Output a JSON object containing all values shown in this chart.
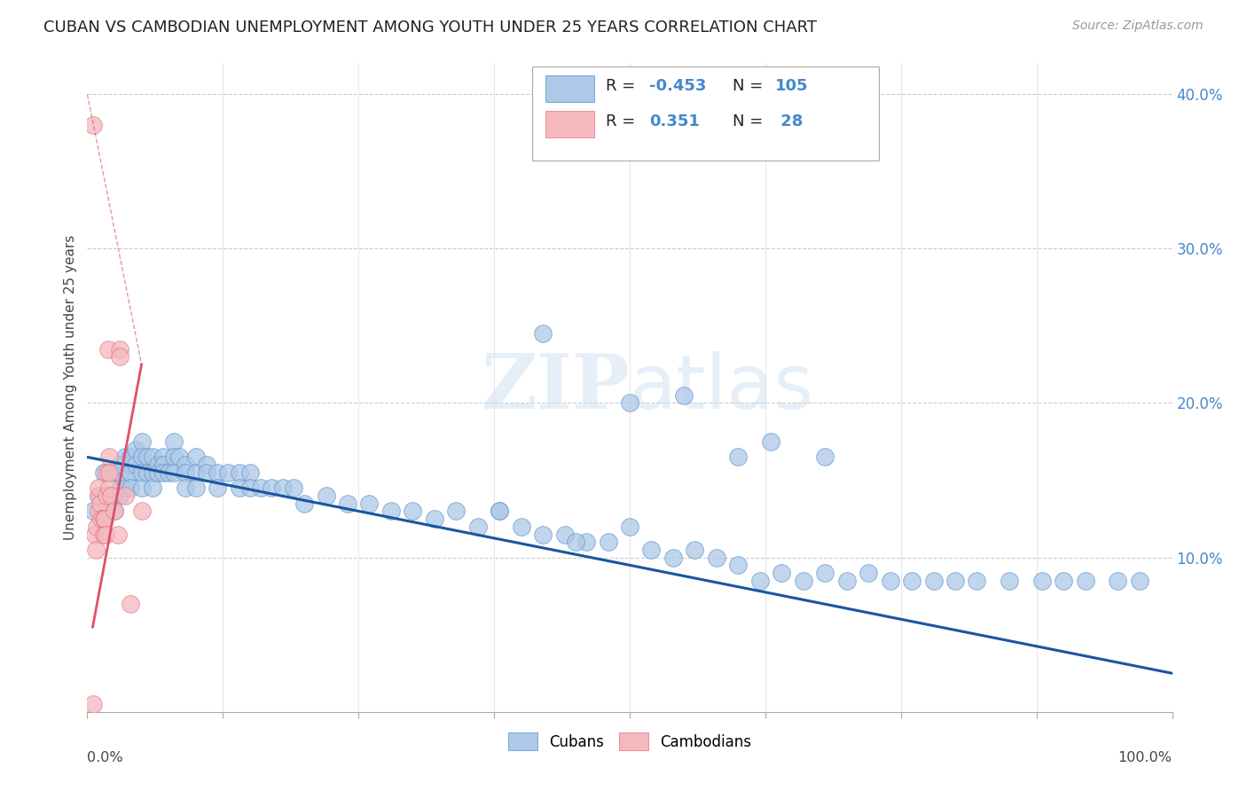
{
  "title": "CUBAN VS CAMBODIAN UNEMPLOYMENT AMONG YOUTH UNDER 25 YEARS CORRELATION CHART",
  "source": "Source: ZipAtlas.com",
  "ylabel": "Unemployment Among Youth under 25 years",
  "xlim": [
    0,
    1.0
  ],
  "ylim": [
    0,
    0.42
  ],
  "blue_R": -0.453,
  "blue_N": 105,
  "pink_R": 0.351,
  "pink_N": 28,
  "blue_color": "#adc8e8",
  "blue_edge_color": "#5590c8",
  "blue_line_color": "#1a56a0",
  "pink_color": "#f5b8be",
  "pink_edge_color": "#e07080",
  "pink_line_color": "#e05068",
  "background_color": "#ffffff",
  "grid_color": "#cccccc",
  "watermark": "ZIPatlas",
  "watermark_color": "#c8ddf0",
  "tick_label_color": "#4488cc",
  "blue_points_x": [
    0.005,
    0.01,
    0.015,
    0.02,
    0.02,
    0.025,
    0.025,
    0.025,
    0.03,
    0.03,
    0.03,
    0.03,
    0.035,
    0.035,
    0.04,
    0.04,
    0.04,
    0.04,
    0.04,
    0.045,
    0.045,
    0.05,
    0.05,
    0.05,
    0.05,
    0.055,
    0.055,
    0.06,
    0.06,
    0.06,
    0.065,
    0.065,
    0.07,
    0.07,
    0.07,
    0.075,
    0.08,
    0.08,
    0.08,
    0.085,
    0.09,
    0.09,
    0.09,
    0.1,
    0.1,
    0.1,
    0.11,
    0.11,
    0.12,
    0.12,
    0.13,
    0.14,
    0.14,
    0.15,
    0.15,
    0.16,
    0.17,
    0.18,
    0.19,
    0.2,
    0.22,
    0.24,
    0.26,
    0.28,
    0.3,
    0.32,
    0.34,
    0.36,
    0.38,
    0.4,
    0.42,
    0.44,
    0.46,
    0.48,
    0.5,
    0.52,
    0.54,
    0.56,
    0.58,
    0.6,
    0.62,
    0.64,
    0.66,
    0.68,
    0.7,
    0.72,
    0.74,
    0.76,
    0.78,
    0.8,
    0.82,
    0.85,
    0.88,
    0.9,
    0.92,
    0.95,
    0.97,
    0.42,
    0.55,
    0.63,
    0.68,
    0.5,
    0.6,
    0.38,
    0.45
  ],
  "blue_points_y": [
    0.13,
    0.14,
    0.155,
    0.155,
    0.14,
    0.155,
    0.14,
    0.13,
    0.145,
    0.155,
    0.16,
    0.14,
    0.165,
    0.145,
    0.155,
    0.16,
    0.165,
    0.155,
    0.145,
    0.17,
    0.16,
    0.175,
    0.165,
    0.155,
    0.145,
    0.165,
    0.155,
    0.165,
    0.155,
    0.145,
    0.16,
    0.155,
    0.165,
    0.16,
    0.155,
    0.155,
    0.175,
    0.165,
    0.155,
    0.165,
    0.16,
    0.155,
    0.145,
    0.165,
    0.155,
    0.145,
    0.16,
    0.155,
    0.155,
    0.145,
    0.155,
    0.155,
    0.145,
    0.155,
    0.145,
    0.145,
    0.145,
    0.145,
    0.145,
    0.135,
    0.14,
    0.135,
    0.135,
    0.13,
    0.13,
    0.125,
    0.13,
    0.12,
    0.13,
    0.12,
    0.115,
    0.115,
    0.11,
    0.11,
    0.12,
    0.105,
    0.1,
    0.105,
    0.1,
    0.095,
    0.085,
    0.09,
    0.085,
    0.09,
    0.085,
    0.09,
    0.085,
    0.085,
    0.085,
    0.085,
    0.085,
    0.085,
    0.085,
    0.085,
    0.085,
    0.085,
    0.085,
    0.245,
    0.205,
    0.175,
    0.165,
    0.2,
    0.165,
    0.13,
    0.11
  ],
  "pink_points_x": [
    0.005,
    0.005,
    0.007,
    0.008,
    0.009,
    0.01,
    0.01,
    0.01,
    0.012,
    0.013,
    0.015,
    0.015,
    0.016,
    0.017,
    0.018,
    0.018,
    0.019,
    0.02,
    0.02,
    0.02,
    0.022,
    0.025,
    0.028,
    0.03,
    0.03,
    0.035,
    0.04,
    0.05
  ],
  "pink_points_y": [
    0.38,
    0.005,
    0.115,
    0.105,
    0.12,
    0.13,
    0.14,
    0.145,
    0.135,
    0.125,
    0.125,
    0.115,
    0.125,
    0.115,
    0.14,
    0.155,
    0.235,
    0.145,
    0.165,
    0.155,
    0.14,
    0.13,
    0.115,
    0.235,
    0.23,
    0.14,
    0.07,
    0.13
  ],
  "blue_line_x": [
    0.0,
    1.0
  ],
  "blue_line_y": [
    0.165,
    0.025
  ],
  "pink_line_x": [
    0.005,
    0.05
  ],
  "pink_line_y": [
    0.055,
    0.225
  ]
}
